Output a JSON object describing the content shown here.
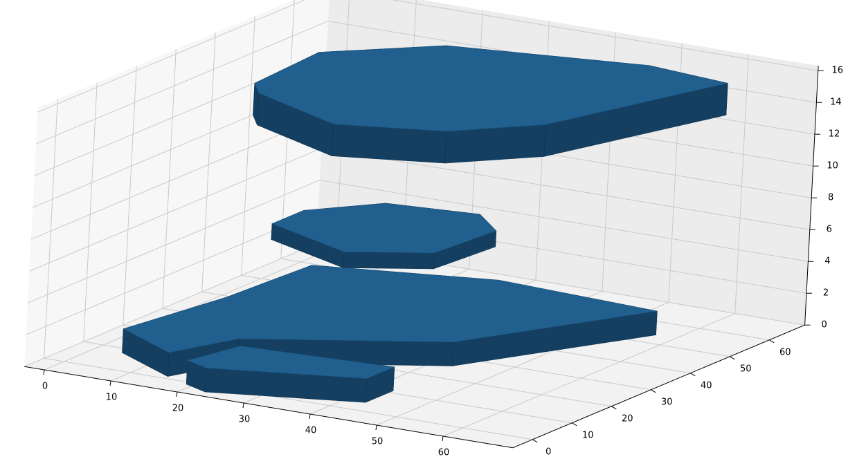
{
  "chart_data": {
    "type": "voxel",
    "color": "#1f77b4",
    "grid": true,
    "xlim": [
      -3,
      70.5
    ],
    "ylim": [
      -5,
      69
    ],
    "zlim": [
      0,
      16.3
    ],
    "xticks": [
      0,
      10,
      20,
      30,
      40,
      50,
      60
    ],
    "yticks": [
      0,
      10,
      20,
      30,
      40,
      50,
      60
    ],
    "zticks": [
      0,
      2,
      4,
      6,
      8,
      10,
      12,
      14,
      16
    ],
    "layers": [
      {
        "z": [
          0,
          1.5
        ],
        "outline": [
          [
            4,
            8
          ],
          [
            7,
            29
          ],
          [
            8,
            49
          ],
          [
            32,
            56
          ],
          [
            57,
            54
          ],
          [
            43,
            26
          ],
          [
            19,
            12
          ],
          [
            15,
            1
          ]
        ]
      },
      {
        "z": [
          0,
          1.5
        ],
        "outline": [
          [
            19,
            -1
          ],
          [
            21,
            9
          ],
          [
            43,
            11
          ],
          [
            43,
            4
          ],
          [
            23,
            -3
          ]
        ]
      },
      {
        "z": [
          6,
          7
        ],
        "outline": [
          [
            15,
            26
          ],
          [
            15,
            34
          ],
          [
            22,
            43
          ],
          [
            35,
            45
          ],
          [
            41,
            39
          ],
          [
            40,
            25
          ],
          [
            30,
            19
          ]
        ]
      },
      {
        "z": [
          13,
          15
        ],
        "outline": [
          [
            9,
            30
          ],
          [
            8,
            48
          ],
          [
            20,
            60
          ],
          [
            47,
            66
          ],
          [
            60,
            64
          ],
          [
            51,
            33
          ],
          [
            42,
            23
          ],
          [
            28,
            18
          ],
          [
            12,
            26
          ]
        ]
      }
    ]
  }
}
